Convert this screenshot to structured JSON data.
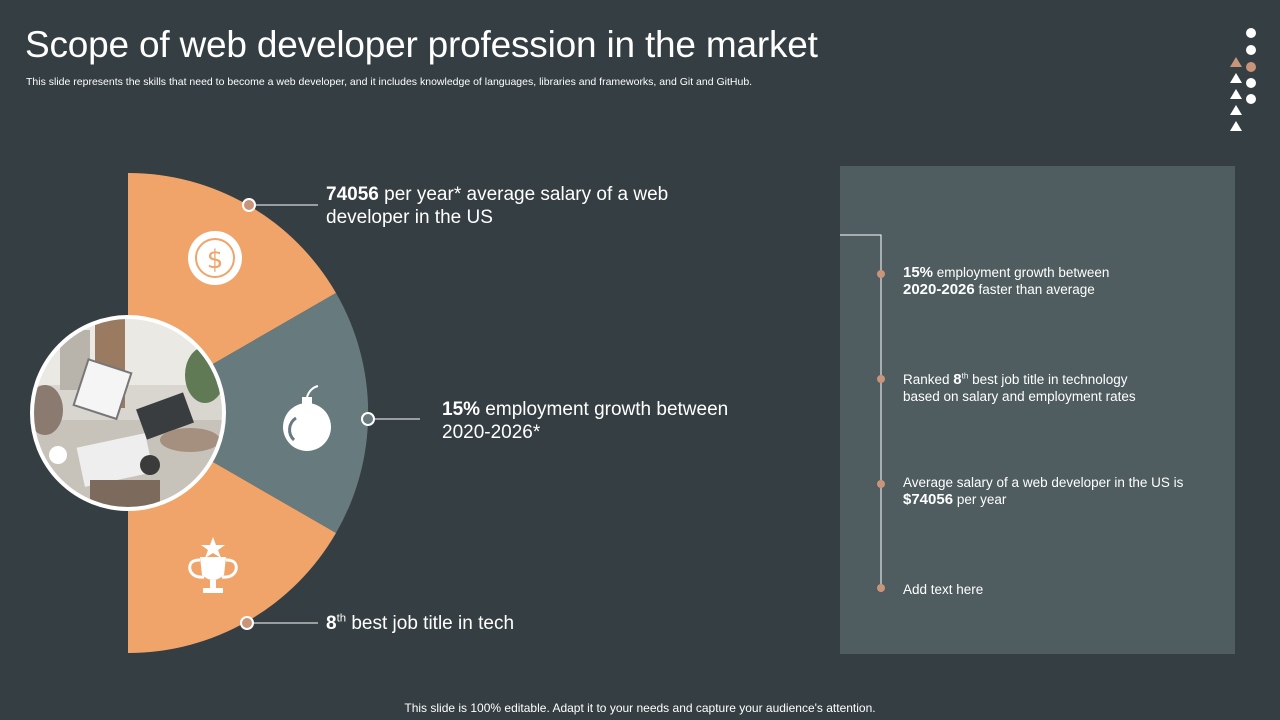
{
  "header": {
    "title": "Scope of web developer profession in the market",
    "subtitle": "This slide represents the skills that need to become a web developer, and it includes knowledge of languages, libraries and frameworks, and Git and GitHub."
  },
  "callouts": {
    "salary": {
      "bold": "74056",
      "text": " per year* average salary of a web developer in the US"
    },
    "growth": {
      "bold": "15%",
      "text": " employment growth between 2020-2026*"
    },
    "rank": {
      "bold": "8",
      "sup": "th",
      "text": " best job title in tech"
    }
  },
  "timeline": {
    "item1": {
      "bold1": "15%",
      "text1": " employment growth between",
      "bold2": "2020-2026",
      "text2": " faster than average"
    },
    "item2": {
      "text1": "Ranked ",
      "bold": "8",
      "sup": "th",
      "text2": " best job title in technology",
      "text3": "based on salary and employment rates"
    },
    "item3": {
      "text1": "Average salary of a web developer in the US is",
      "bold": "$74056",
      "text2": " per year"
    },
    "item4": {
      "text": "Add text here"
    }
  },
  "footer": {
    "text": "This slide is 100% editable. Adapt it to your needs and capture your audience's attention."
  },
  "icons": {
    "segment1": "dollar-icon",
    "segment2": "bomb-icon",
    "segment3": "trophy-icon",
    "photo": "meeting-photo"
  },
  "colors": {
    "background": "#353e42",
    "accent_orange": "#f0a46a",
    "accent_gray": "#677a7d",
    "panel": "#4f5c60",
    "dot_tan": "#c9957a"
  }
}
